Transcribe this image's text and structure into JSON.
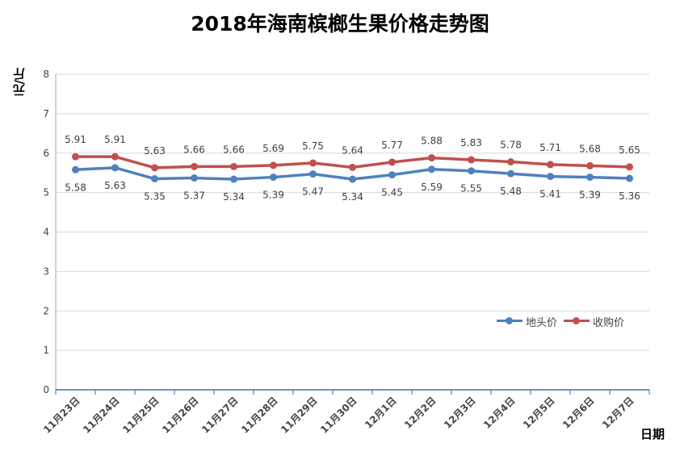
{
  "chart_data": {
    "type": "line",
    "title": "2018年海南槟榔生果价格走势图",
    "xlabel": "日期",
    "ylabel": "元/斤",
    "ylim": [
      0,
      8
    ],
    "yticks": [
      "0",
      "1",
      "2",
      "3",
      "4",
      "5",
      "6",
      "7",
      "8"
    ],
    "grid": true,
    "legend_position": "right",
    "categories": [
      "11月23日",
      "11月24日",
      "11月25日",
      "11月26日",
      "11月27日",
      "11月28日",
      "11月29日",
      "11月30日",
      "12月1日",
      "12月2日",
      "12月3日",
      "12月4日",
      "12月5日",
      "12月6日",
      "12月7日"
    ],
    "series": [
      {
        "name": "地头价",
        "color": "#4f81bd",
        "values": [
          5.58,
          5.63,
          5.35,
          5.37,
          5.34,
          5.39,
          5.47,
          5.34,
          5.45,
          5.59,
          5.55,
          5.48,
          5.41,
          5.39,
          5.36
        ],
        "labels": [
          "5.58",
          "5.63",
          "5.35",
          "5.37",
          "5.34",
          "5.39",
          "5.47",
          "5.34",
          "5.45",
          "5.59",
          "5.55",
          "5.48",
          "5.41",
          "5.39",
          "5.36"
        ]
      },
      {
        "name": "收购价",
        "color": "#c0504d",
        "values": [
          5.91,
          5.91,
          5.63,
          5.66,
          5.66,
          5.69,
          5.75,
          5.64,
          5.77,
          5.88,
          5.83,
          5.78,
          5.71,
          5.68,
          5.65
        ],
        "labels": [
          "5.91",
          "5.91",
          "5.63",
          "5.66",
          "5.66",
          "5.69",
          "5.75",
          "5.64",
          "5.77",
          "5.88",
          "5.83",
          "5.78",
          "5.71",
          "5.68",
          "5.65"
        ]
      }
    ]
  }
}
